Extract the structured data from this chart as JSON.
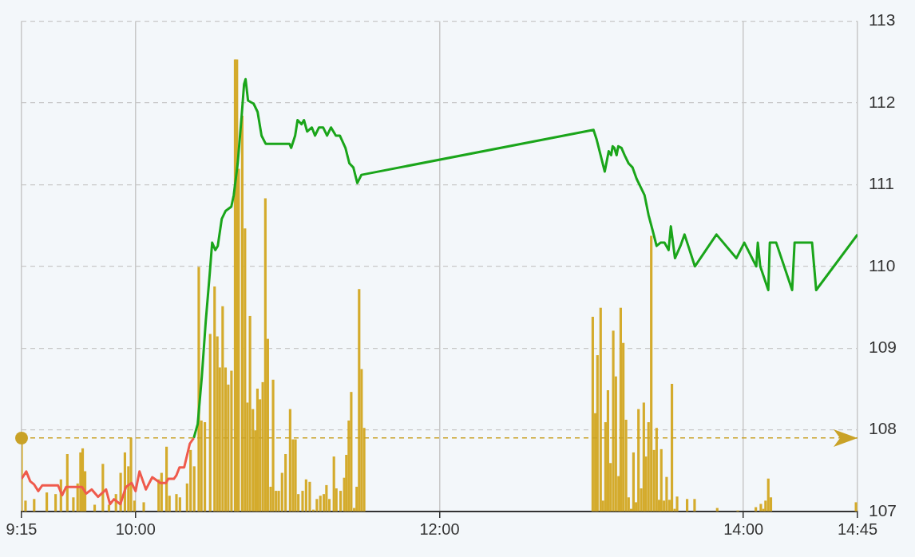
{
  "chart_data": {
    "type": "line",
    "xlim": [
      9.25,
      14.75
    ],
    "xticks": [
      {
        "value": 9.25,
        "label": "9:15"
      },
      {
        "value": 10,
        "label": "10:00"
      },
      {
        "value": 12,
        "label": "12:00"
      },
      {
        "value": 14,
        "label": "14:00"
      },
      {
        "value": 14.75,
        "label": "14:45"
      }
    ],
    "ylim": [
      107,
      113
    ],
    "yticks": [
      107,
      108,
      109,
      110,
      111,
      112,
      113
    ],
    "grid": true,
    "legend": false,
    "marker": "none",
    "line_style": "solid",
    "ref_lines": [
      {
        "axis": "y",
        "value": 107.9,
        "color": "#c9a227",
        "line_style": "dashed"
      }
    ],
    "series": [
      {
        "type": "bar",
        "color": "#d4ab2c",
        "x": [
          9.25,
          9.276,
          9.333,
          9.416,
          9.474,
          9.509,
          9.551,
          9.591,
          9.619,
          9.638,
          9.652,
          9.668,
          9.731,
          9.785,
          9.825,
          9.871,
          9.902,
          9.93,
          9.953,
          9.97,
          9.993,
          10.054,
          10.152,
          10.171,
          10.204,
          10.223,
          10.269,
          10.292,
          10.339,
          10.362,
          10.386,
          10.416,
          10.433,
          10.456,
          10.491,
          10.52,
          10.538,
          10.554,
          10.573,
          10.592,
          10.61,
          10.631,
          10.655,
          10.667,
          10.678,
          10.702,
          10.72,
          10.736,
          10.753,
          10.772,
          10.788,
          10.802,
          10.819,
          10.837,
          10.854,
          10.87,
          10.889,
          10.905,
          10.924,
          10.942,
          10.964,
          10.987,
          11.017,
          11.036,
          11.052,
          11.071,
          11.099,
          11.122,
          11.146,
          11.17,
          11.193,
          11.216,
          11.239,
          11.256,
          11.275,
          11.305,
          11.321,
          11.349,
          11.373,
          11.387,
          11.403,
          11.419,
          11.438,
          11.455,
          11.471,
          11.487,
          11.504,
          13.008,
          13.025,
          13.039,
          13.06,
          13.075,
          13.092,
          13.108,
          13.125,
          13.143,
          13.16,
          13.178,
          13.192,
          13.209,
          13.227,
          13.244,
          13.261,
          13.276,
          13.293,
          13.309,
          13.327,
          13.344,
          13.358,
          13.375,
          13.393,
          13.411,
          13.428,
          13.445,
          13.459,
          13.477,
          13.494,
          13.512,
          13.529,
          13.547,
          13.563,
          13.629,
          13.678,
          13.827,
          13.962,
          14.081,
          14.114,
          14.131,
          14.145,
          14.163,
          14.18,
          14.74
        ],
        "values": [
          107.83,
          107.13,
          107.15,
          107.23,
          107.21,
          107.39,
          107.7,
          107.17,
          107.34,
          107.72,
          107.77,
          107.49,
          107.08,
          107.58,
          107.08,
          107.21,
          107.47,
          107.72,
          107.55,
          107.9,
          107.13,
          107.11,
          107.39,
          107.47,
          107.79,
          107.19,
          107.21,
          107.17,
          107.34,
          107.75,
          107.55,
          109.99,
          108.11,
          108.09,
          109.17,
          109.75,
          109.14,
          108.76,
          109.51,
          108.76,
          108.55,
          108.72,
          112.53,
          112.53,
          111.19,
          111.84,
          110.46,
          108.33,
          109.39,
          108.25,
          107.99,
          108.5,
          108.37,
          108.58,
          110.83,
          109.11,
          107.3,
          108.61,
          107.25,
          107.25,
          107.47,
          107.7,
          108.25,
          107.88,
          107.88,
          107.21,
          107.25,
          107.39,
          107.36,
          107.02,
          107.15,
          107.19,
          107.21,
          107.32,
          107.15,
          107.67,
          107.28,
          107.25,
          107.41,
          107.69,
          108.11,
          108.46,
          107.04,
          107.3,
          109.72,
          108.74,
          108.02,
          109.38,
          108.2,
          108.91,
          109.49,
          107.13,
          108.09,
          108.48,
          107.59,
          109.21,
          108.65,
          107.43,
          109.49,
          109.06,
          108.12,
          107.17,
          107.03,
          107.72,
          107.11,
          108.25,
          107.28,
          108.33,
          107.67,
          108.09,
          110.37,
          107.75,
          108.02,
          107.14,
          107.76,
          107.13,
          107.42,
          107.14,
          108.56,
          107.03,
          107.18,
          107.15,
          107.15,
          107.04,
          107.01,
          107.05,
          107.09,
          107.03,
          107.13,
          107.4,
          107.17,
          107.11
        ]
      },
      {
        "type": "line",
        "color": "#ef5a4c",
        "x": [
          9.25,
          9.281,
          9.307,
          9.333,
          9.36,
          9.386,
          9.49,
          9.517,
          9.543,
          9.596,
          9.648,
          9.675,
          9.711,
          9.753,
          9.806,
          9.832,
          9.858,
          9.9,
          9.937,
          9.974,
          10,
          10.026,
          10.068,
          10.11,
          10.163,
          10.2,
          10.215,
          10.252,
          10.268,
          10.289,
          10.32,
          10.357,
          10.383
        ],
        "values": [
          107.4,
          107.49,
          107.37,
          107.33,
          107.25,
          107.32,
          107.32,
          107.2,
          107.3,
          107.3,
          107.3,
          107.22,
          107.27,
          107.18,
          107.27,
          107.09,
          107.15,
          107.09,
          107.3,
          107.35,
          107.25,
          107.49,
          107.27,
          107.42,
          107.35,
          107.35,
          107.4,
          107.4,
          107.44,
          107.54,
          107.54,
          107.83,
          107.9
        ]
      },
      {
        "type": "line",
        "color": "#1aa51a",
        "x": [
          10.383,
          10.409,
          10.436,
          10.462,
          10.488,
          10.504,
          10.525,
          10.541,
          10.567,
          10.593,
          10.63,
          10.646,
          10.672,
          10.698,
          10.714,
          10.724,
          10.74,
          10.777,
          10.803,
          10.829,
          10.856,
          11.013,
          11.024,
          11.05,
          11.066,
          11.092,
          11.108,
          11.129,
          11.16,
          11.181,
          11.207,
          11.234,
          11.26,
          11.286,
          11.318,
          11.344,
          11.381,
          11.407,
          11.433,
          11.459,
          11.486,
          13.013,
          13.034,
          13.06,
          13.087,
          13.113,
          13.129,
          13.139,
          13.15,
          13.165,
          13.176,
          13.197,
          13.218,
          13.244,
          13.27,
          13.297,
          13.323,
          13.349,
          13.375,
          13.402,
          13.428,
          13.454,
          13.48,
          13.507,
          13.522,
          13.549,
          13.585,
          13.612,
          13.68,
          13.822,
          13.953,
          14.005,
          14.084,
          14.094,
          14.11,
          14.163,
          14.173,
          14.215,
          14.32,
          14.336,
          14.451,
          14.478,
          14.75
        ],
        "values": [
          107.9,
          108.07,
          108.65,
          109.33,
          109.91,
          110.29,
          110.2,
          110.25,
          110.58,
          110.68,
          110.73,
          110.87,
          111.26,
          111.84,
          112.23,
          112.29,
          112.03,
          111.99,
          111.89,
          111.6,
          111.5,
          111.5,
          111.45,
          111.6,
          111.79,
          111.74,
          111.79,
          111.65,
          111.7,
          111.6,
          111.7,
          111.7,
          111.6,
          111.7,
          111.6,
          111.6,
          111.45,
          111.26,
          111.21,
          111.02,
          111.12,
          111.67,
          111.55,
          111.36,
          111.16,
          111.41,
          111.36,
          111.47,
          111.45,
          111.36,
          111.47,
          111.45,
          111.36,
          111.26,
          111.21,
          111.07,
          110.97,
          110.87,
          110.63,
          110.44,
          110.25,
          110.29,
          110.29,
          110.2,
          110.49,
          110.1,
          110.25,
          110.39,
          110,
          110.39,
          110.1,
          110.29,
          110,
          110.29,
          110,
          109.71,
          110.29,
          110.29,
          109.71,
          110.29,
          110.29,
          109.71,
          110.39
        ]
      }
    ]
  }
}
